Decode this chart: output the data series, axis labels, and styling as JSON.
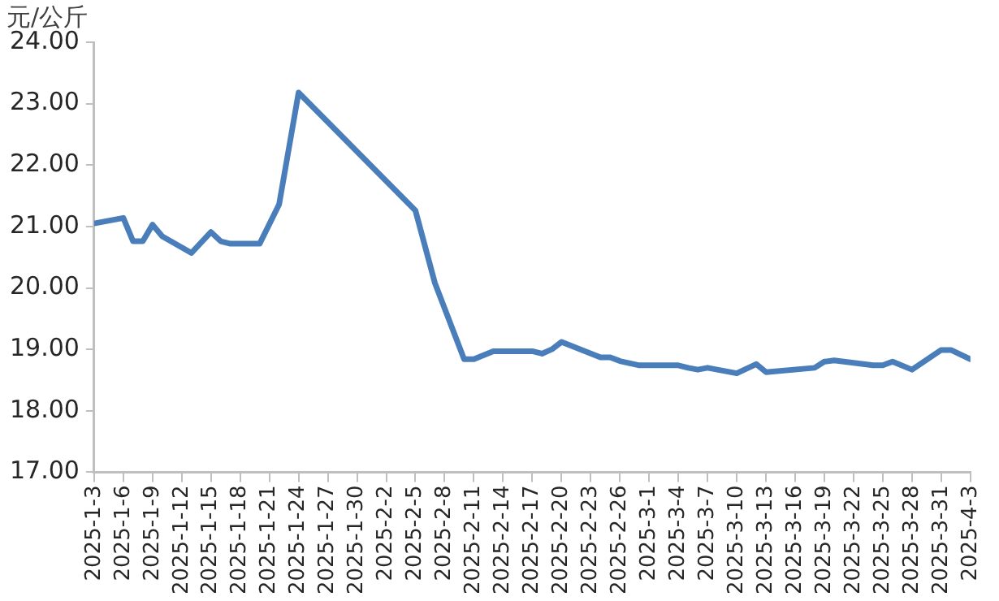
{
  "chart_data": {
    "type": "line",
    "ylabel": "元/公斤",
    "x": [
      "2025-01-03",
      "2025-01-06",
      "2025-01-07",
      "2025-01-08",
      "2025-01-09",
      "2025-01-10",
      "2025-01-13",
      "2025-01-15",
      "2025-01-16",
      "2025-01-17",
      "2025-01-20",
      "2025-01-22",
      "2025-01-24",
      "2025-02-05",
      "2025-02-07",
      "2025-02-10",
      "2025-02-11",
      "2025-02-13",
      "2025-02-17",
      "2025-02-18",
      "2025-02-19",
      "2025-02-20",
      "2025-02-24",
      "2025-02-25",
      "2025-02-26",
      "2025-02-28",
      "2025-03-04",
      "2025-03-05",
      "2025-03-06",
      "2025-03-07",
      "2025-03-10",
      "2025-03-12",
      "2025-03-13",
      "2025-03-18",
      "2025-03-19",
      "2025-03-20",
      "2025-03-24",
      "2025-03-25",
      "2025-03-26",
      "2025-03-28",
      "2025-03-31",
      "2025-04-01",
      "2025-04-03"
    ],
    "series": [
      {
        "color": "#4a7ebb",
        "values": [
          21.05,
          21.14,
          20.76,
          20.76,
          21.03,
          20.84,
          20.57,
          20.91,
          20.76,
          20.72,
          20.72,
          21.36,
          23.18,
          21.26,
          20.08,
          18.84,
          18.84,
          18.97,
          18.97,
          18.93,
          19.0,
          19.12,
          18.87,
          18.87,
          18.81,
          18.74,
          18.74,
          18.7,
          18.67,
          18.7,
          18.61,
          18.76,
          18.63,
          18.7,
          18.8,
          18.82,
          18.74,
          18.74,
          18.8,
          18.67,
          18.99,
          18.99,
          18.84
        ]
      }
    ],
    "xlim": [
      "2025-01-03",
      "2025-04-03"
    ],
    "xticks": [
      {
        "value": "2025-01-03",
        "label": "2025-1-3"
      },
      {
        "value": "2025-01-06",
        "label": "2025-1-6"
      },
      {
        "value": "2025-01-09",
        "label": "2025-1-9"
      },
      {
        "value": "2025-01-12",
        "label": "2025-1-12"
      },
      {
        "value": "2025-01-15",
        "label": "2025-1-15"
      },
      {
        "value": "2025-01-18",
        "label": "2025-1-18"
      },
      {
        "value": "2025-01-21",
        "label": "2025-1-21"
      },
      {
        "value": "2025-01-24",
        "label": "2025-1-24"
      },
      {
        "value": "2025-01-27",
        "label": "2025-1-27"
      },
      {
        "value": "2025-01-30",
        "label": "2025-1-30"
      },
      {
        "value": "2025-02-02",
        "label": "2025-2-2"
      },
      {
        "value": "2025-02-05",
        "label": "2025-2-5"
      },
      {
        "value": "2025-02-08",
        "label": "2025-2-8"
      },
      {
        "value": "2025-02-11",
        "label": "2025-2-11"
      },
      {
        "value": "2025-02-14",
        "label": "2025-2-14"
      },
      {
        "value": "2025-02-17",
        "label": "2025-2-17"
      },
      {
        "value": "2025-02-20",
        "label": "2025-2-20"
      },
      {
        "value": "2025-02-23",
        "label": "2025-2-23"
      },
      {
        "value": "2025-02-26",
        "label": "2025-2-26"
      },
      {
        "value": "2025-03-01",
        "label": "2025-3-1"
      },
      {
        "value": "2025-03-04",
        "label": "2025-3-4"
      },
      {
        "value": "2025-03-07",
        "label": "2025-3-7"
      },
      {
        "value": "2025-03-10",
        "label": "2025-3-10"
      },
      {
        "value": "2025-03-13",
        "label": "2025-3-13"
      },
      {
        "value": "2025-03-16",
        "label": "2025-3-16"
      },
      {
        "value": "2025-03-19",
        "label": "2025-3-19"
      },
      {
        "value": "2025-03-22",
        "label": "2025-3-22"
      },
      {
        "value": "2025-03-25",
        "label": "2025-3-25"
      },
      {
        "value": "2025-03-28",
        "label": "2025-3-28"
      },
      {
        "value": "2025-03-31",
        "label": "2025-3-31"
      },
      {
        "value": "2025-04-03",
        "label": "2025-4-3"
      }
    ],
    "ylim": [
      17,
      24
    ],
    "yticks": [
      {
        "value": 17,
        "label": "17.00"
      },
      {
        "value": 18,
        "label": "18.00"
      },
      {
        "value": 19,
        "label": "19.00"
      },
      {
        "value": 20,
        "label": "20.00"
      },
      {
        "value": 21,
        "label": "21.00"
      },
      {
        "value": 22,
        "label": "22.00"
      },
      {
        "value": 23,
        "label": "23.00"
      },
      {
        "value": 24,
        "label": "24.00"
      }
    ],
    "grid": false,
    "legend": false,
    "marker": "none",
    "line_style": "solid"
  }
}
